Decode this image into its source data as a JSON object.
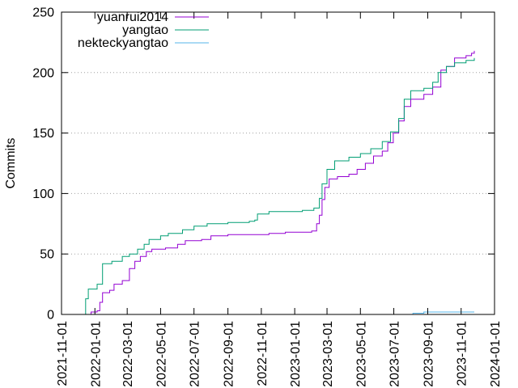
{
  "chart_data": {
    "type": "line",
    "title": "",
    "xlabel": "",
    "ylabel": "Commits",
    "xlim": [
      "2021-11-01",
      "2024-01-01"
    ],
    "ylim": [
      0,
      250
    ],
    "grid": "horizontal-dotted",
    "legend_position": "top-left",
    "x_ticks": [
      "2021-11-01",
      "2022-01-01",
      "2022-03-01",
      "2022-05-01",
      "2022-07-01",
      "2022-09-01",
      "2022-11-01",
      "2023-01-01",
      "2023-03-01",
      "2023-05-01",
      "2023-07-01",
      "2023-09-01",
      "2023-11-01",
      "2024-01-01"
    ],
    "y_ticks": [
      0,
      50,
      100,
      150,
      200,
      250
    ],
    "series": [
      {
        "name": "yuanrui2014",
        "color": "#9400d3",
        "points": [
          [
            "2021-12-15",
            0
          ],
          [
            "2021-12-25",
            2
          ],
          [
            "2022-01-05",
            3
          ],
          [
            "2022-01-10",
            10
          ],
          [
            "2022-01-15",
            18
          ],
          [
            "2022-01-28",
            20
          ],
          [
            "2022-02-05",
            25
          ],
          [
            "2022-02-20",
            28
          ],
          [
            "2022-03-05",
            38
          ],
          [
            "2022-03-15",
            44
          ],
          [
            "2022-03-25",
            48
          ],
          [
            "2022-04-05",
            52
          ],
          [
            "2022-04-15",
            54
          ],
          [
            "2022-05-10",
            55
          ],
          [
            "2022-06-01",
            58
          ],
          [
            "2022-06-15",
            61
          ],
          [
            "2022-07-15",
            62
          ],
          [
            "2022-08-01",
            65
          ],
          [
            "2022-09-01",
            66
          ],
          [
            "2022-10-01",
            66
          ],
          [
            "2022-11-15",
            67
          ],
          [
            "2022-12-15",
            68
          ],
          [
            "2023-02-01",
            69
          ],
          [
            "2023-02-10",
            75
          ],
          [
            "2023-02-15",
            82
          ],
          [
            "2023-02-20",
            95
          ],
          [
            "2023-02-25",
            105
          ],
          [
            "2023-03-05",
            112
          ],
          [
            "2023-03-20",
            114
          ],
          [
            "2023-04-10",
            116
          ],
          [
            "2023-04-25",
            120
          ],
          [
            "2023-05-10",
            125
          ],
          [
            "2023-05-25",
            131
          ],
          [
            "2023-06-10",
            135
          ],
          [
            "2023-06-20",
            142
          ],
          [
            "2023-06-30",
            150
          ],
          [
            "2023-07-10",
            160
          ],
          [
            "2023-07-20",
            172
          ],
          [
            "2023-08-01",
            178
          ],
          [
            "2023-08-25",
            182
          ],
          [
            "2023-09-10",
            188
          ],
          [
            "2023-09-25",
            202
          ],
          [
            "2023-10-05",
            205
          ],
          [
            "2023-10-20",
            212
          ],
          [
            "2023-11-10",
            214
          ],
          [
            "2023-11-20",
            216
          ],
          [
            "2023-11-25",
            218
          ]
        ]
      },
      {
        "name": "yangtao",
        "color": "#009e73",
        "points": [
          [
            "2021-12-10",
            0
          ],
          [
            "2021-12-15",
            13
          ],
          [
            "2021-12-20",
            21
          ],
          [
            "2022-01-05",
            25
          ],
          [
            "2022-01-15",
            42
          ],
          [
            "2022-02-01",
            44
          ],
          [
            "2022-02-20",
            48
          ],
          [
            "2022-03-05",
            50
          ],
          [
            "2022-03-20",
            54
          ],
          [
            "2022-04-01",
            58
          ],
          [
            "2022-04-10",
            62
          ],
          [
            "2022-05-01",
            65
          ],
          [
            "2022-05-15",
            67
          ],
          [
            "2022-06-10",
            70
          ],
          [
            "2022-07-01",
            73
          ],
          [
            "2022-07-25",
            75
          ],
          [
            "2022-09-01",
            76
          ],
          [
            "2022-10-10",
            77
          ],
          [
            "2022-10-20",
            78
          ],
          [
            "2022-10-25",
            83
          ],
          [
            "2022-11-15",
            85
          ],
          [
            "2023-01-15",
            86
          ],
          [
            "2023-02-05",
            88
          ],
          [
            "2023-02-15",
            96
          ],
          [
            "2023-02-20",
            108
          ],
          [
            "2023-03-01",
            120
          ],
          [
            "2023-03-15",
            127
          ],
          [
            "2023-04-10",
            130
          ],
          [
            "2023-05-01",
            133
          ],
          [
            "2023-05-20",
            137
          ],
          [
            "2023-06-10",
            143
          ],
          [
            "2023-06-25",
            151
          ],
          [
            "2023-07-10",
            162
          ],
          [
            "2023-07-20",
            178
          ],
          [
            "2023-08-01",
            185
          ],
          [
            "2023-08-25",
            187
          ],
          [
            "2023-09-10",
            192
          ],
          [
            "2023-09-20",
            200
          ],
          [
            "2023-10-05",
            205
          ],
          [
            "2023-10-20",
            208
          ],
          [
            "2023-11-10",
            210
          ],
          [
            "2023-11-25",
            212
          ]
        ]
      },
      {
        "name": "nekteckyangtao",
        "color": "#56b4e9",
        "points": [
          [
            "2023-07-25",
            0
          ],
          [
            "2023-08-05",
            1
          ],
          [
            "2023-08-25",
            2
          ],
          [
            "2023-11-25",
            2
          ]
        ]
      }
    ]
  }
}
